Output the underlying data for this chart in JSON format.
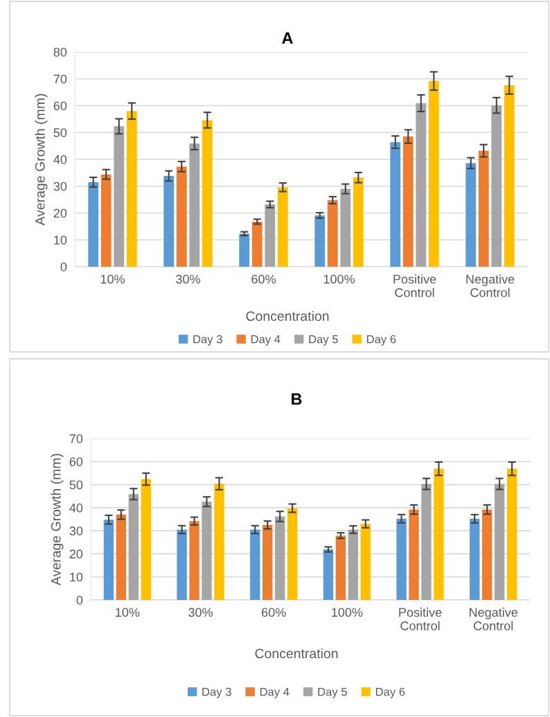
{
  "chart_data": [
    {
      "type": "bar",
      "title": "A",
      "xlabel": "Concentration",
      "ylabel": "Average Growth (mm)",
      "categories": [
        "10%",
        "30%",
        "60%",
        "100%",
        "Positive\nControl",
        "Negative\nControl"
      ],
      "ylim": [
        0,
        80
      ],
      "yticks": [
        0,
        10,
        20,
        30,
        40,
        50,
        60,
        70,
        80
      ],
      "grid": "y",
      "legend": "bottom",
      "series": [
        {
          "name": "Day 3",
          "color": "#5b9bd5",
          "values": [
            31.5,
            33.8,
            12.3,
            19.1,
            46.4,
            38.6
          ],
          "errors": [
            1.8,
            1.9,
            0.7,
            1.0,
            2.3,
            2.0
          ]
        },
        {
          "name": "Day 4",
          "color": "#ed7d31",
          "values": [
            34.4,
            37.3,
            16.8,
            24.8,
            48.5,
            43.2
          ],
          "errors": [
            1.8,
            1.9,
            0.9,
            1.3,
            2.5,
            2.3
          ]
        },
        {
          "name": "Day 5",
          "color": "#a5a5a5",
          "values": [
            52.3,
            45.9,
            23.2,
            29.0,
            60.9,
            60.1
          ],
          "errors": [
            2.8,
            2.3,
            1.2,
            1.8,
            3.1,
            2.9
          ]
        },
        {
          "name": "Day 6",
          "color": "#ffc000",
          "values": [
            58.0,
            54.6,
            29.6,
            33.2,
            69.2,
            67.6
          ],
          "errors": [
            3.0,
            2.9,
            1.6,
            1.9,
            3.4,
            3.3
          ]
        }
      ]
    },
    {
      "type": "bar",
      "title": "B",
      "xlabel": "Concentration",
      "ylabel": "Average Growth (mm)",
      "categories": [
        "10%",
        "30%",
        "60%",
        "100%",
        "Positive\nControl",
        "Negative\nControl"
      ],
      "ylim": [
        0,
        70
      ],
      "yticks": [
        0,
        10,
        20,
        30,
        40,
        50,
        60,
        70
      ],
      "grid": "y",
      "legend": "bottom",
      "series": [
        {
          "name": "Day 3",
          "color": "#5b9bd5",
          "values": [
            34.8,
            30.5,
            30.5,
            21.9,
            35.2,
            35.2
          ],
          "errors": [
            1.9,
            1.7,
            1.7,
            1.1,
            1.8,
            1.8
          ]
        },
        {
          "name": "Day 4",
          "color": "#ed7d31",
          "values": [
            37.0,
            34.2,
            32.5,
            27.9,
            39.2,
            39.2
          ],
          "errors": [
            2.0,
            1.7,
            1.7,
            1.2,
            2.0,
            2.0
          ]
        },
        {
          "name": "Day 5",
          "color": "#a5a5a5",
          "values": [
            45.9,
            42.6,
            36.2,
            30.5,
            50.3,
            50.3
          ],
          "errors": [
            2.4,
            2.1,
            2.2,
            1.6,
            2.4,
            2.4
          ]
        },
        {
          "name": "Day 6",
          "color": "#ffc000",
          "values": [
            52.4,
            50.4,
            39.8,
            33.0,
            56.9,
            56.9
          ],
          "errors": [
            2.6,
            2.6,
            1.8,
            1.7,
            2.9,
            2.9
          ]
        }
      ]
    }
  ]
}
